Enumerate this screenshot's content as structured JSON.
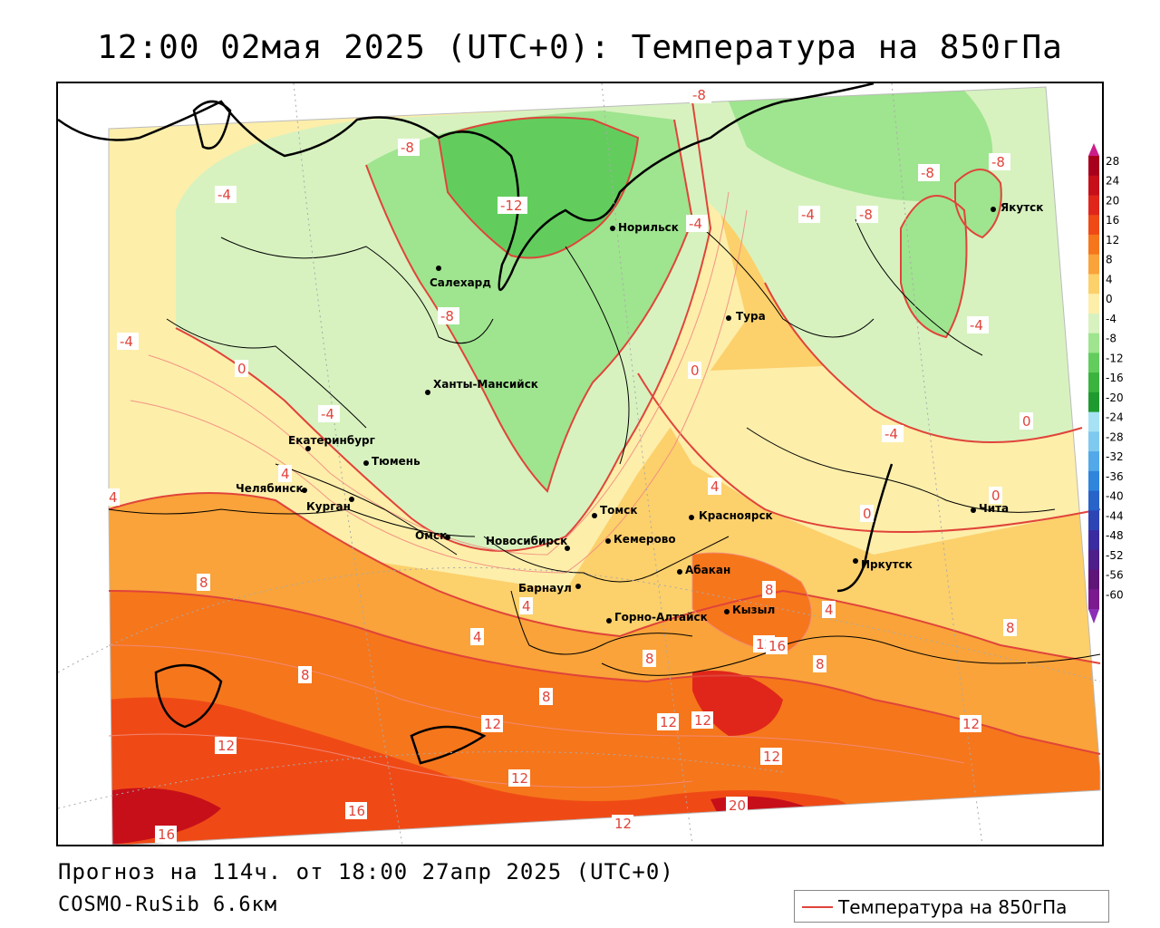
{
  "title": "12:00 02мая 2025 (UTC+0): Температура на 850гПа",
  "footer": {
    "forecast": "Прогноз на 114ч. от 18:00 27апр 2025 (UTC+0)",
    "model": "COSMO-RuSib 6.6км"
  },
  "legend": {
    "label": "Температура на 850гПа",
    "line_color": "#e0443a"
  },
  "colorbar": {
    "labels": [
      "28",
      "24",
      "20",
      "16",
      "12",
      "8",
      "4",
      "0",
      "-4",
      "-8",
      "-12",
      "-16",
      "-20",
      "-24",
      "-28",
      "-32",
      "-36",
      "-40",
      "-44",
      "-48",
      "-52",
      "-56",
      "-60"
    ],
    "colors": [
      "#a8001c",
      "#c70f1a",
      "#e0261a",
      "#ef4a16",
      "#f6761c",
      "#f9a33a",
      "#fcd06b",
      "#fdeeaa",
      "#d7f2bf",
      "#9fe48f",
      "#62cd5d",
      "#3ab33f",
      "#1f9a2e",
      "#a6e2f4",
      "#7ec9ef",
      "#52a8e8",
      "#2f84dc",
      "#2763c9",
      "#2d44b5",
      "#3a2ca0",
      "#4c1f8a",
      "#5f1478",
      "#7a1a8e"
    ],
    "top_color": "#cc1d8a",
    "bottom_color": "#8a2fb6"
  },
  "cities": [
    {
      "name": "Салехард"
    },
    {
      "name": "Норильск"
    },
    {
      "name": "Якутск"
    },
    {
      "name": "Тура"
    },
    {
      "name": "Ханты-Мансийск"
    },
    {
      "name": "Екатеринбург"
    },
    {
      "name": "Тюмень"
    },
    {
      "name": "Челябинск"
    },
    {
      "name": "Курган"
    },
    {
      "name": "Омск"
    },
    {
      "name": "Новосибирск"
    },
    {
      "name": "Томск"
    },
    {
      "name": "Кемерово"
    },
    {
      "name": "Красноярск"
    },
    {
      "name": "Абакан"
    },
    {
      "name": "Барнаул"
    },
    {
      "name": "Горно-Алтайск"
    },
    {
      "name": "Кызыл"
    },
    {
      "name": "Иркутск"
    },
    {
      "name": "Чита"
    }
  ],
  "isotherm_labels": [
    "-12",
    "-8",
    "-8",
    "-8",
    "-8",
    "-8",
    "-8",
    "-4",
    "-4",
    "-4",
    "-4",
    "-4",
    "-4",
    "-4",
    "0",
    "0",
    "0",
    "0",
    "0",
    "4",
    "4",
    "4",
    "4",
    "4",
    "4",
    "8",
    "8",
    "8",
    "8",
    "8",
    "8",
    "8",
    "12",
    "12",
    "12",
    "12",
    "12",
    "12",
    "12",
    "12",
    "12",
    "16",
    "16",
    "16",
    "20"
  ]
}
